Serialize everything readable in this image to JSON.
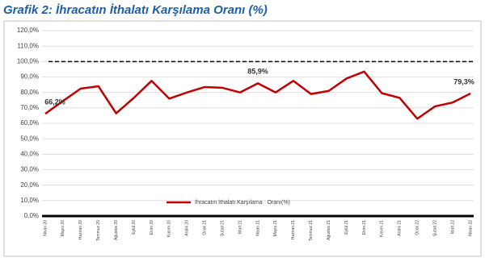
{
  "chart_data": {
    "type": "line",
    "title": "Grafik 2: İhracatın İthalatı Karşılama Oranı (%)",
    "categories": [
      "Nisan 20",
      "Mayıs 20",
      "Haziran 20",
      "Temmuz 20",
      "Ağustos 20",
      "Eylül 20",
      "Ekim 20",
      "Kasım 20",
      "Aralık 20",
      "Ocak 21",
      "Şubat 21",
      "Mart 21",
      "Nisan 21",
      "Mayıs 21",
      "Haziran 21",
      "Temmuz 21",
      "Ağustos 21",
      "Eylül 21",
      "Ekim 21",
      "Kasım 21",
      "Aralık 21",
      "Ocak 22",
      "Şubat 22",
      "Mart 22",
      "Nisan 22"
    ],
    "series": [
      {
        "name": "İhracatın İthalatı Karşılama   Oranı(%)",
        "color": "#c00000",
        "values": [
          66.2,
          74.5,
          82.5,
          84,
          66.5,
          76.5,
          87.5,
          76,
          80,
          83.5,
          83,
          80,
          85.9,
          80,
          87.5,
          79,
          81,
          89,
          93.5,
          79.5,
          76.5,
          63,
          71,
          73.5,
          79.3
        ],
        "value_labels": [
          "66,2%",
          null,
          null,
          null,
          null,
          null,
          null,
          null,
          null,
          null,
          null,
          null,
          "85,9%",
          null,
          null,
          null,
          null,
          null,
          null,
          null,
          null,
          null,
          null,
          null,
          "79,3%"
        ]
      }
    ],
    "reference_line": 100,
    "ylim": [
      0,
      120
    ],
    "yticks": [
      {
        "value": 0,
        "label": "0,0%"
      },
      {
        "value": 10,
        "label": "10,0%"
      },
      {
        "value": 20,
        "label": "20,0%"
      },
      {
        "value": 30,
        "label": "30,0%"
      },
      {
        "value": 40,
        "label": "40,0%"
      },
      {
        "value": 50,
        "label": "50,0%"
      },
      {
        "value": 60,
        "label": "60,0%"
      },
      {
        "value": 70,
        "label": "70,0%"
      },
      {
        "value": 80,
        "label": "80,0%"
      },
      {
        "value": 90,
        "label": "90,0%"
      },
      {
        "value": 100,
        "label": "100,0%"
      },
      {
        "value": 110,
        "label": "110,0%"
      },
      {
        "value": 120,
        "label": "120,0%"
      }
    ],
    "grid": true,
    "legend": "bottom"
  }
}
